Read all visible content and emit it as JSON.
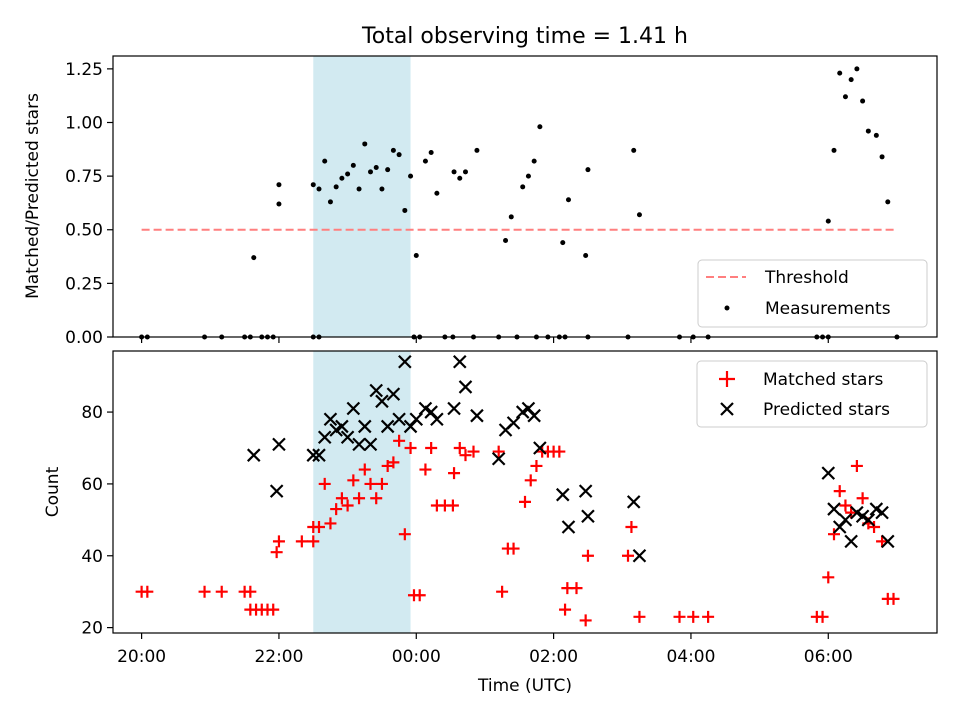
{
  "colors": {
    "threshold": "#ff7f7f",
    "measurement": "#000000",
    "matched": "#ff0000",
    "predicted": "#000000",
    "shade": "#add8e6"
  },
  "chart_data": [
    {
      "type": "scatter",
      "title": "Total observing time = 1.41 h",
      "xlabel": "",
      "ylabel": "Matched/Predicted stars",
      "xlim": [
        "19:35",
        "07:35"
      ],
      "ylim": [
        0,
        1.31
      ],
      "yticks": [
        "0.00",
        "0.25",
        "0.50",
        "0.75",
        "1.00",
        "1.25"
      ],
      "shaded_span": [
        "22:30",
        "23:55"
      ],
      "legend": {
        "position": "lower-right",
        "entries": [
          "Threshold",
          "Measurements"
        ]
      },
      "threshold": {
        "name": "Threshold",
        "y": 0.5,
        "x": [
          "20:00",
          "07:00"
        ]
      },
      "series": [
        {
          "name": "Measurements",
          "points": [
            [
              "20:00",
              0
            ],
            [
              "20:05",
              0
            ],
            [
              "20:55",
              0
            ],
            [
              "21:10",
              0
            ],
            [
              "21:30",
              0
            ],
            [
              "21:35",
              0
            ],
            [
              "21:45",
              0
            ],
            [
              "21:50",
              0
            ],
            [
              "21:55",
              0
            ],
            [
              "22:30",
              0
            ],
            [
              "22:35",
              0
            ],
            [
              "23:58",
              0
            ],
            [
              "24:03",
              0
            ],
            [
              "24:25",
              0
            ],
            [
              "24:32",
              0
            ],
            [
              "24:50",
              0
            ],
            [
              "25:12",
              0
            ],
            [
              "25:28",
              0
            ],
            [
              "25:45",
              0
            ],
            [
              "25:55",
              0
            ],
            [
              "26:05",
              0
            ],
            [
              "26:10",
              0
            ],
            [
              "26:30",
              0
            ],
            [
              "27:05",
              0
            ],
            [
              "27:50",
              0
            ],
            [
              "28:02",
              0
            ],
            [
              "28:15",
              0
            ],
            [
              "29:50",
              0
            ],
            [
              "29:55",
              0
            ],
            [
              "30:00",
              0
            ],
            [
              "31:00",
              0
            ],
            [
              "21:38",
              0.37
            ],
            [
              "22:00",
              0.71
            ],
            [
              "22:00",
              0.62
            ],
            [
              "22:30",
              0.71
            ],
            [
              "22:35",
              0.69
            ],
            [
              "22:40",
              0.82
            ],
            [
              "22:45",
              0.63
            ],
            [
              "22:50",
              0.7
            ],
            [
              "22:55",
              0.74
            ],
            [
              "23:00",
              0.76
            ],
            [
              "23:05",
              0.8
            ],
            [
              "23:10",
              0.69
            ],
            [
              "23:15",
              0.9
            ],
            [
              "23:20",
              0.77
            ],
            [
              "23:25",
              0.79
            ],
            [
              "23:30",
              0.69
            ],
            [
              "23:35",
              0.78
            ],
            [
              "23:40",
              0.87
            ],
            [
              "23:45",
              0.85
            ],
            [
              "23:50",
              0.59
            ],
            [
              "23:55",
              0.75
            ],
            [
              "24:00",
              0.38
            ],
            [
              "24:08",
              0.82
            ],
            [
              "24:13",
              0.86
            ],
            [
              "24:18",
              0.67
            ],
            [
              "24:33",
              0.77
            ],
            [
              "24:38",
              0.74
            ],
            [
              "24:43",
              0.77
            ],
            [
              "24:53",
              0.87
            ],
            [
              "25:18",
              0.45
            ],
            [
              "25:23",
              0.56
            ],
            [
              "25:33",
              0.7
            ],
            [
              "25:38",
              0.75
            ],
            [
              "25:43",
              0.82
            ],
            [
              "25:48",
              0.98
            ],
            [
              "26:08",
              0.44
            ],
            [
              "26:13",
              0.64
            ],
            [
              "26:28",
              0.38
            ],
            [
              "26:30",
              0.78
            ],
            [
              "27:10",
              0.87
            ],
            [
              "27:15",
              0.57
            ],
            [
              "30:00",
              0.54
            ],
            [
              "30:05",
              0.87
            ],
            [
              "30:10",
              1.23
            ],
            [
              "30:15",
              1.12
            ],
            [
              "30:20",
              1.2
            ],
            [
              "30:25",
              1.25
            ],
            [
              "30:30",
              1.1
            ],
            [
              "30:35",
              0.96
            ],
            [
              "30:42",
              0.94
            ],
            [
              "30:47",
              0.84
            ],
            [
              "30:52",
              0.63
            ]
          ]
        }
      ]
    },
    {
      "type": "scatter",
      "title": "",
      "xlabel": "Time (UTC)",
      "ylabel": "Count",
      "xlim": [
        "19:35",
        "07:35"
      ],
      "ylim": [
        18.5,
        97
      ],
      "yticks": [
        "20",
        "40",
        "60",
        "80"
      ],
      "xticks": [
        "20:00",
        "22:00",
        "00:00",
        "02:00",
        "04:00",
        "06:00"
      ],
      "shaded_span": [
        "22:30",
        "23:55"
      ],
      "legend": {
        "position": "upper-right",
        "entries": [
          "Matched stars",
          "Predicted stars"
        ]
      },
      "series": [
        {
          "name": "Matched stars",
          "points": [
            [
              "20:00",
              30
            ],
            [
              "20:05",
              30
            ],
            [
              "20:55",
              30
            ],
            [
              "21:10",
              30
            ],
            [
              "21:30",
              30
            ],
            [
              "21:35",
              30
            ],
            [
              "21:35",
              25
            ],
            [
              "21:40",
              25
            ],
            [
              "21:45",
              25
            ],
            [
              "21:50",
              25
            ],
            [
              "21:55",
              25
            ],
            [
              "21:58",
              41
            ],
            [
              "22:00",
              44
            ],
            [
              "22:20",
              44
            ],
            [
              "22:30",
              44
            ],
            [
              "22:30",
              48
            ],
            [
              "22:35",
              48
            ],
            [
              "22:40",
              60
            ],
            [
              "22:45",
              49
            ],
            [
              "22:50",
              53
            ],
            [
              "22:55",
              56
            ],
            [
              "23:00",
              54
            ],
            [
              "23:05",
              61
            ],
            [
              "23:10",
              56
            ],
            [
              "23:15",
              64
            ],
            [
              "23:20",
              60
            ],
            [
              "23:25",
              56
            ],
            [
              "23:30",
              60
            ],
            [
              "23:35",
              65
            ],
            [
              "23:40",
              66
            ],
            [
              "23:45",
              72
            ],
            [
              "23:50",
              46
            ],
            [
              "23:55",
              70
            ],
            [
              "23:58",
              29
            ],
            [
              "24:03",
              29
            ],
            [
              "24:08",
              64
            ],
            [
              "24:13",
              70
            ],
            [
              "24:18",
              54
            ],
            [
              "24:25",
              54
            ],
            [
              "24:32",
              54
            ],
            [
              "24:33",
              63
            ],
            [
              "24:38",
              70
            ],
            [
              "24:43",
              68
            ],
            [
              "24:50",
              69
            ],
            [
              "25:12",
              69
            ],
            [
              "25:15",
              30
            ],
            [
              "25:20",
              42
            ],
            [
              "25:25",
              42
            ],
            [
              "25:35",
              55
            ],
            [
              "25:40",
              61
            ],
            [
              "25:45",
              65
            ],
            [
              "25:50",
              69
            ],
            [
              "25:55",
              69
            ],
            [
              "26:00",
              69
            ],
            [
              "26:05",
              69
            ],
            [
              "26:10",
              25
            ],
            [
              "26:12",
              31
            ],
            [
              "26:20",
              31
            ],
            [
              "26:28",
              22
            ],
            [
              "26:30",
              40
            ],
            [
              "27:05",
              40
            ],
            [
              "27:08",
              48
            ],
            [
              "27:15",
              23
            ],
            [
              "27:50",
              23
            ],
            [
              "28:02",
              23
            ],
            [
              "28:15",
              23
            ],
            [
              "29:50",
              23
            ],
            [
              "29:55",
              23
            ],
            [
              "30:00",
              34
            ],
            [
              "30:05",
              46
            ],
            [
              "30:10",
              58
            ],
            [
              "30:15",
              54
            ],
            [
              "30:20",
              52
            ],
            [
              "30:25",
              65
            ],
            [
              "30:30",
              56
            ],
            [
              "30:35",
              49
            ],
            [
              "30:40",
              48
            ],
            [
              "30:47",
              44
            ],
            [
              "30:52",
              28
            ],
            [
              "30:57",
              28
            ]
          ]
        },
        {
          "name": "Predicted stars",
          "points": [
            [
              "21:38",
              68
            ],
            [
              "21:58",
              58
            ],
            [
              "22:00",
              71
            ],
            [
              "22:30",
              68
            ],
            [
              "22:35",
              68
            ],
            [
              "22:40",
              73
            ],
            [
              "22:45",
              78
            ],
            [
              "22:50",
              75
            ],
            [
              "22:55",
              76
            ],
            [
              "23:00",
              73
            ],
            [
              "23:05",
              81
            ],
            [
              "23:10",
              71
            ],
            [
              "23:15",
              76
            ],
            [
              "23:20",
              71
            ],
            [
              "23:25",
              86
            ],
            [
              "23:30",
              83
            ],
            [
              "23:35",
              76
            ],
            [
              "23:40",
              85
            ],
            [
              "23:45",
              78
            ],
            [
              "23:50",
              94
            ],
            [
              "23:55",
              76
            ],
            [
              "24:00",
              78
            ],
            [
              "24:08",
              81
            ],
            [
              "24:13",
              80
            ],
            [
              "24:18",
              78
            ],
            [
              "24:33",
              81
            ],
            [
              "24:38",
              94
            ],
            [
              "24:43",
              87
            ],
            [
              "24:53",
              79
            ],
            [
              "25:12",
              67
            ],
            [
              "25:18",
              75
            ],
            [
              "25:25",
              77
            ],
            [
              "25:33",
              80
            ],
            [
              "25:38",
              81
            ],
            [
              "25:43",
              79
            ],
            [
              "25:48",
              70
            ],
            [
              "26:08",
              57
            ],
            [
              "26:13",
              48
            ],
            [
              "26:28",
              58
            ],
            [
              "26:30",
              51
            ],
            [
              "27:10",
              55
            ],
            [
              "27:15",
              40
            ],
            [
              "30:00",
              63
            ],
            [
              "30:05",
              53
            ],
            [
              "30:10",
              48
            ],
            [
              "30:15",
              50
            ],
            [
              "30:20",
              44
            ],
            [
              "30:25",
              52
            ],
            [
              "30:30",
              51
            ],
            [
              "30:35",
              50
            ],
            [
              "30:42",
              53
            ],
            [
              "30:47",
              52
            ],
            [
              "30:52",
              44
            ]
          ]
        }
      ]
    }
  ]
}
